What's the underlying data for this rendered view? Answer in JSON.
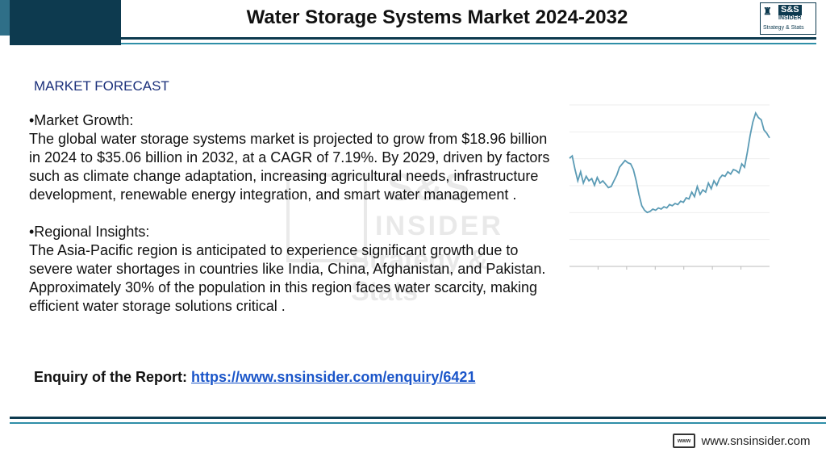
{
  "header": {
    "title": "Water Storage Systems Market 2024-2032",
    "logo": {
      "mark": "S&S",
      "brand": "S&S",
      "sub": "INSIDER",
      "tagline": "Strategy & Stats"
    }
  },
  "watermark": {
    "line1": "S&S",
    "line2": "INSIDER",
    "line3": "Strategy & Stats"
  },
  "section": {
    "heading": "MARKET FORECAST",
    "paragraphs": [
      {
        "title": "•Market Growth:",
        "body": "The global water storage systems market is projected to grow from $18.96 billion in 2024 to $35.06 billion in 2032, at a CAGR of 7.19%. By 2029, driven by factors such as climate change adaptation, increasing agricultural needs, infrastructure development, renewable energy integration, and smart water management ."
      },
      {
        "title": "•Regional Insights:",
        "body": "The Asia-Pacific region is anticipated to experience significant growth due to severe water shortages in countries like India, China, Afghanistan, and Pakistan. Approximately 30% of the population in this region faces water scarcity, making efficient water storage solutions critical ."
      }
    ]
  },
  "enquiry": {
    "label": "Enquiry of the Report:",
    "link_text": "https://www.snsinsider.com/enquiry/6421"
  },
  "footer": {
    "icon_text": "www",
    "url": "www.snsinsider.com"
  },
  "colors": {
    "navy": "#0d3a4f",
    "teal": "#2f8fa8",
    "heading": "#1a2f7a",
    "link": "#1a55c9",
    "line": "#5b9bb5"
  },
  "chart_data": {
    "type": "line",
    "title": "",
    "xlabel": "",
    "ylabel": "",
    "ylim": [
      0,
      100
    ],
    "grid": true,
    "series": [
      {
        "values": [
          60,
          62,
          50,
          40,
          48,
          38,
          44,
          40,
          42,
          36,
          43,
          38,
          40,
          37,
          34,
          35,
          40,
          45,
          52,
          55,
          58,
          56,
          55,
          50,
          40,
          28,
          18,
          14,
          12,
          13,
          15,
          14,
          16,
          15,
          17,
          16,
          19,
          18,
          20,
          19,
          22,
          21,
          25,
          24,
          30,
          26,
          35,
          28,
          32,
          30,
          38,
          33,
          40,
          36,
          42,
          45,
          44,
          48,
          46,
          50,
          49,
          47,
          55,
          52,
          65,
          80,
          92,
          100,
          96,
          94,
          85,
          82,
          78
        ]
      }
    ]
  }
}
